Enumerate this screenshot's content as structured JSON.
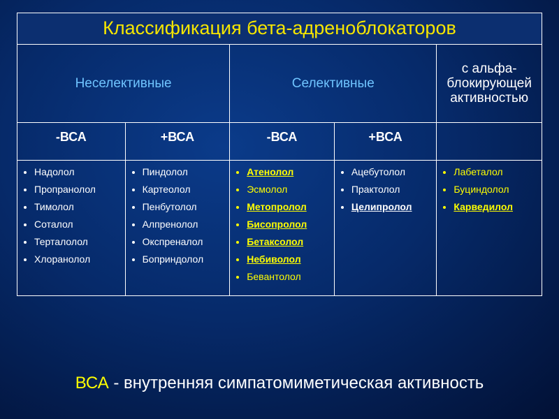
{
  "title": "Классификация бета-адреноблокаторов",
  "headers": {
    "nonselective": "Неселективные",
    "selective": "Селективные",
    "alpha": "с альфа-блокирующей активностью"
  },
  "sub": {
    "c1": "-ВСА",
    "c2": "+ВСА",
    "c3": "-ВСА",
    "c4": "+ВСА",
    "c5": ""
  },
  "col1": [
    "Надолол",
    "Пропранолол",
    "Тимолол",
    "Соталол",
    "Терталолол",
    "Хлоранолол"
  ],
  "col2": [
    "Пиндолол",
    "Картеолол",
    "Пенбутолол",
    "Алпренолол",
    "Окспреналол",
    "Боприндолол"
  ],
  "col3": [
    {
      "t": "Атенолол",
      "cls": "yu"
    },
    {
      "t": "Эсмолол",
      "cls": "y"
    },
    {
      "t": "Метопролол",
      "cls": "yu"
    },
    {
      "t": "Бисопролол",
      "cls": "yu"
    },
    {
      "t": "Бетаксолол",
      "cls": "yu"
    },
    {
      "t": "Небиволол",
      "cls": "yu"
    },
    {
      "t": "Бевантолол",
      "cls": "y"
    }
  ],
  "col4": [
    {
      "t": "Ацебутолол",
      "cls": ""
    },
    {
      "t": "Практолол",
      "cls": ""
    },
    {
      "t": "Целипролол",
      "cls": "wu"
    }
  ],
  "col5": [
    {
      "t": "Лабеталол",
      "cls": "y"
    },
    {
      "t": "Буциндолол",
      "cls": "y"
    },
    {
      "t": "Карведилол",
      "cls": "yu"
    }
  ],
  "footer": {
    "a": "ВСА",
    "b": " - внутренняя симпатомиметическая активность"
  },
  "colors": {
    "title_text": "#f6e600",
    "accent_blue": "#6fc4ff",
    "yellow": "#ffff00",
    "white": "#ffffff",
    "border": "#ffffff"
  }
}
